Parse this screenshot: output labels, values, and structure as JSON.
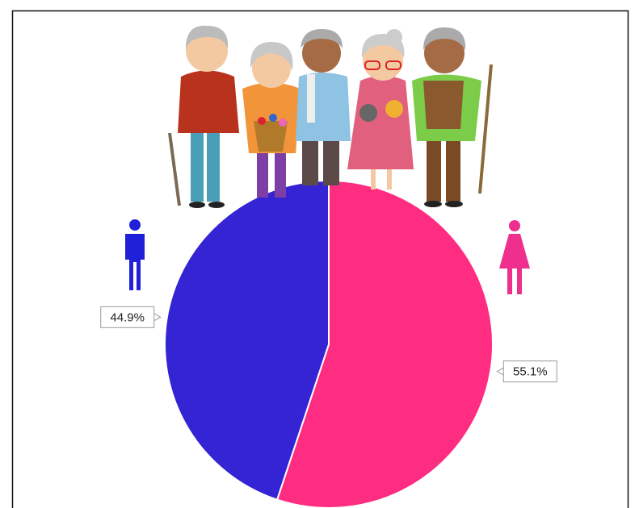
{
  "chart_data": {
    "type": "pie",
    "values": [
      55.1,
      44.9
    ],
    "value_labels": [
      "55.1%",
      "44.9%"
    ],
    "colors": [
      "#ff2d82",
      "#3424d4"
    ]
  }
}
